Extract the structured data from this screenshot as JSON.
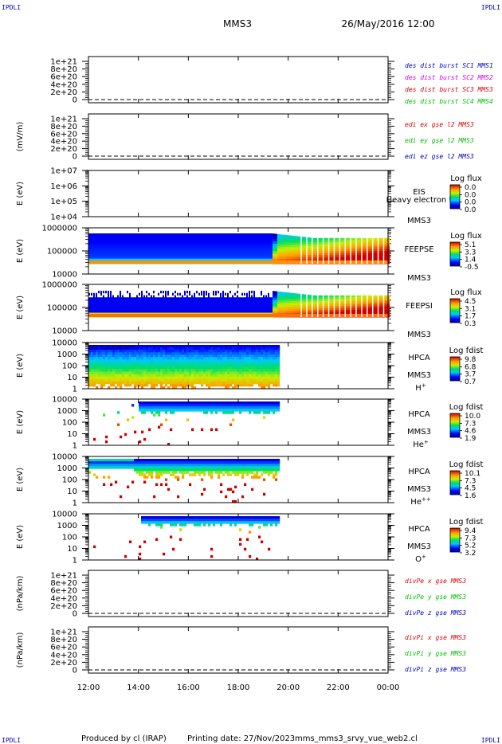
{
  "header": {
    "corner_tl": "IPDLI",
    "corner_tr": "IPDLI",
    "corner_bl": "IPDLI",
    "corner_br": "IPDLI",
    "spacecraft": "MMS3",
    "datetime": "26/May/2016 12:00"
  },
  "footer": {
    "produced_by": "Produced by cl (IRAP)",
    "printing_date": "Printing date: 27/Nov/2023",
    "script_name": "mms_mms3_srvy_vue_web2.cl"
  },
  "colors": {
    "red": "#e00000",
    "magenta": "#e000e0",
    "blue": "#0000c0",
    "green": "#00c000"
  },
  "chart_data": {
    "type": "heatmap",
    "x_ticks": [
      "12:00",
      "14:00",
      "16:00",
      "18:00",
      "20:00",
      "22:00",
      "00:00"
    ],
    "x_range_hours": [
      12,
      24
    ],
    "panels": [
      {
        "kind": "line",
        "ylabel": "",
        "yticks": [
          "1e+21",
          "8e+20",
          "6e+20",
          "4e+20",
          "2e+20",
          "0"
        ],
        "legend": [
          {
            "text": "des dist burst SC1 MMS1",
            "color": "#0000c0"
          },
          {
            "text": "des dist burst SC2 MMS2",
            "color": "#e000e0"
          },
          {
            "text": "des dist burst SC3 MMS3",
            "color": "#e00000"
          },
          {
            "text": "des dist burst SC4 MMS4",
            "color": "#00c000"
          }
        ]
      },
      {
        "kind": "line",
        "ylabel": "(mV/m)",
        "yticks": [
          "1e+21",
          "8e+20",
          "6e+20",
          "4e+20",
          "2e+20",
          "0"
        ],
        "legend": [
          {
            "text": "edi ex gse l2 MMS3",
            "color": "#e00000"
          },
          {
            "text": "edi ey gse l2 MMS3",
            "color": "#00c000"
          },
          {
            "text": "edi ez gse l2 MMS3",
            "color": "#0000c0"
          }
        ]
      },
      {
        "kind": "spec",
        "ylabel": "E (eV)",
        "yticks": [
          "1e+07",
          "1e+06",
          "1e+05",
          "1e+04"
        ],
        "instrument": "EIS",
        "overlay": "Heavy electron t",
        "sc": "MMS3",
        "species": "",
        "cbar_title": "Log flux",
        "cbar_ticks": [
          "0.0",
          "0.0",
          "0.0",
          "0.0"
        ]
      },
      {
        "kind": "spec",
        "ylabel": "E (eV)",
        "yticks": [
          "1000000",
          "100000",
          "10000"
        ],
        "instrument": "FEEPSE",
        "overlay": "",
        "sc": "MMS3",
        "species": "",
        "cbar_title": "Log flux",
        "cbar_ticks": [
          "5.1",
          "3.3",
          "1.4",
          "-0.5"
        ]
      },
      {
        "kind": "spec",
        "ylabel": "E (eV)",
        "yticks": [
          "1000000",
          "100000",
          "10000"
        ],
        "instrument": "FEEPSI",
        "overlay": "",
        "sc": "MMS3",
        "species": "",
        "cbar_title": "Log flux",
        "cbar_ticks": [
          "4.5",
          "3.1",
          "1.7",
          "0.3"
        ]
      },
      {
        "kind": "spec",
        "ylabel": "E (eV)",
        "yticks": [
          "10000",
          "1000",
          "100",
          "10",
          "1"
        ],
        "instrument": "HPCA",
        "overlay": "",
        "sc": "MMS3",
        "species": "H+",
        "cbar_title": "Log fdist",
        "cbar_ticks": [
          "9.8",
          "6.8",
          "3.7",
          "0.7"
        ]
      },
      {
        "kind": "spec",
        "ylabel": "E (eV)",
        "yticks": [
          "10000",
          "1000",
          "100",
          "10",
          "1"
        ],
        "instrument": "HPCA",
        "overlay": "",
        "sc": "MMS3",
        "species": "He+",
        "cbar_title": "Log fdist",
        "cbar_ticks": [
          "10.0",
          "7.3",
          "4.6",
          "1.9"
        ]
      },
      {
        "kind": "spec",
        "ylabel": "E (eV)",
        "yticks": [
          "10000",
          "1000",
          "100",
          "10",
          "1"
        ],
        "instrument": "HPCA",
        "overlay": "",
        "sc": "MMS3",
        "species": "He++",
        "cbar_title": "Log fdist",
        "cbar_ticks": [
          "10.1",
          "7.3",
          "4.5",
          "1.6"
        ]
      },
      {
        "kind": "spec",
        "ylabel": "E (eV)",
        "yticks": [
          "10000",
          "1000",
          "100",
          "10",
          "1"
        ],
        "instrument": "HPCA",
        "overlay": "",
        "sc": "MMS3",
        "species": "O+",
        "cbar_title": "Log fdist",
        "cbar_ticks": [
          "9.4",
          "7.3",
          "5.2",
          "3.2"
        ]
      },
      {
        "kind": "line",
        "ylabel": "(nPa/km)",
        "yticks": [
          "1e+21",
          "8e+20",
          "6e+20",
          "4e+20",
          "2e+20",
          "0"
        ],
        "legend": [
          {
            "text": "divPe x gse MMS3",
            "color": "#e00000"
          },
          {
            "text": "divPe y gse MMS3",
            "color": "#00c000"
          },
          {
            "text": "divPe z gse MMS3",
            "color": "#0000c0"
          }
        ]
      },
      {
        "kind": "line",
        "ylabel": "(nPa/km)",
        "yticks": [
          "1e+21",
          "8e+20",
          "6e+20",
          "4e+20",
          "2e+20",
          "0"
        ],
        "legend": [
          {
            "text": "divPi x gse MMS3",
            "color": "#e00000"
          },
          {
            "text": "divPi y gse MMS3",
            "color": "#00c000"
          },
          {
            "text": "divPi z gse MMS3",
            "color": "#0000c0"
          }
        ]
      }
    ]
  }
}
